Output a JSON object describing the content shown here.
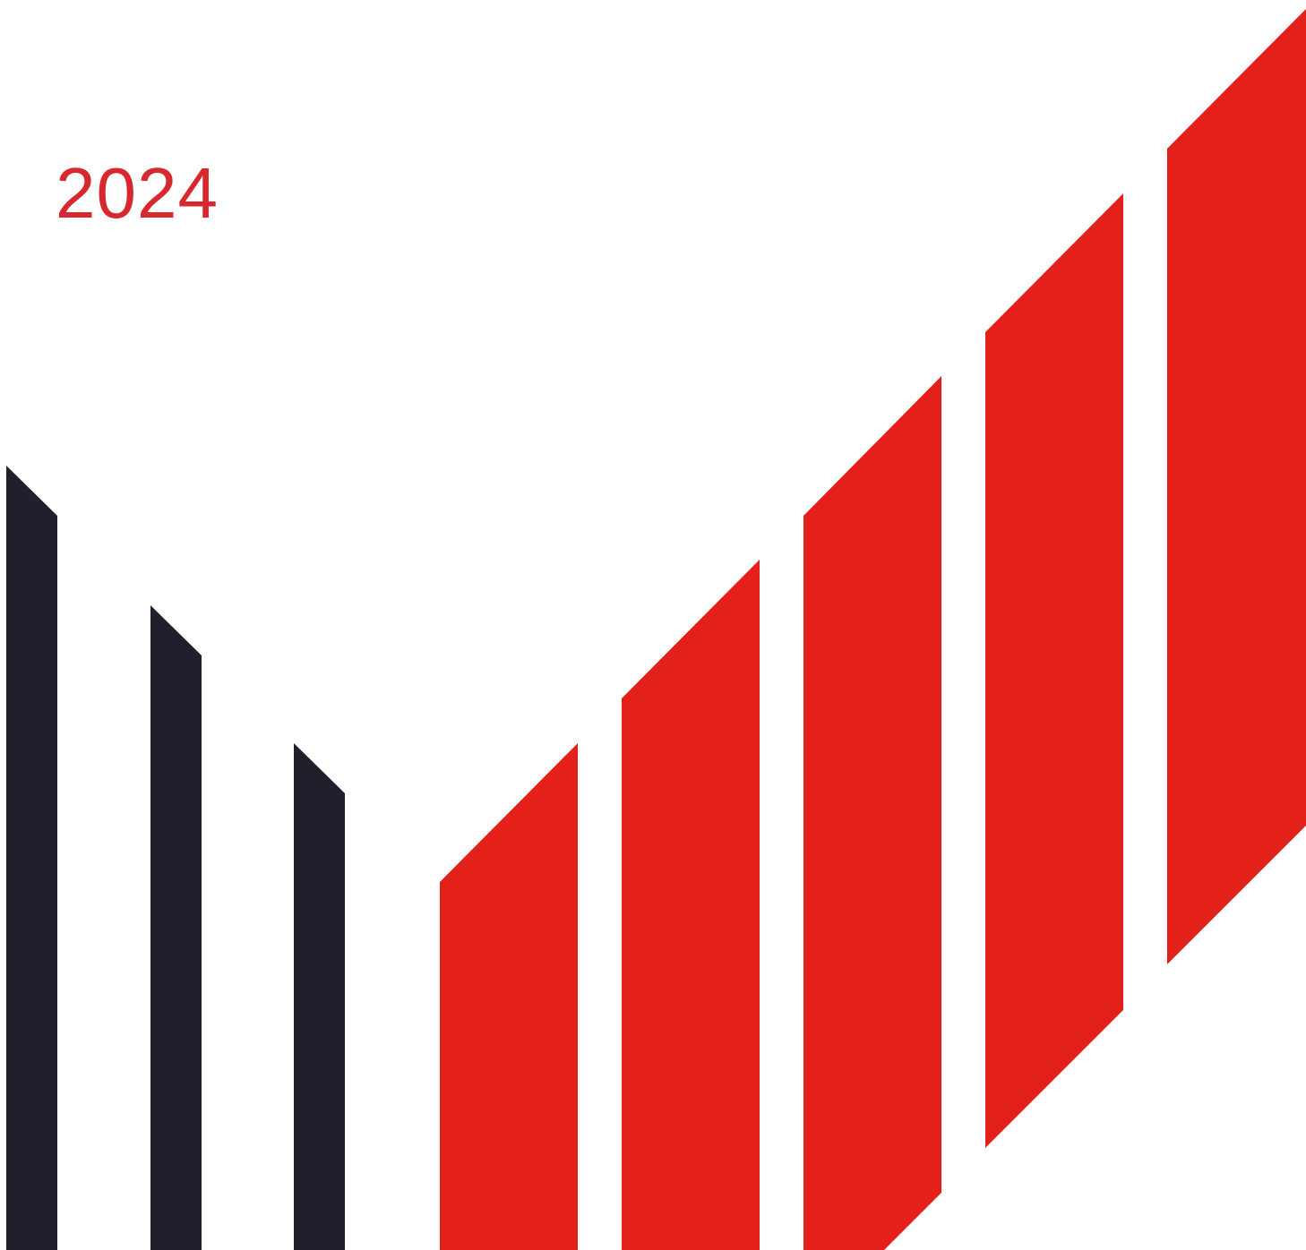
{
  "cover": {
    "year": "2024",
    "year_color": "#d7282f"
  },
  "graphic": {
    "dark_color": "#1f202b",
    "accent_color": "#e3211a",
    "dark_stripe_count": 3,
    "red_stripe_count": 5
  }
}
